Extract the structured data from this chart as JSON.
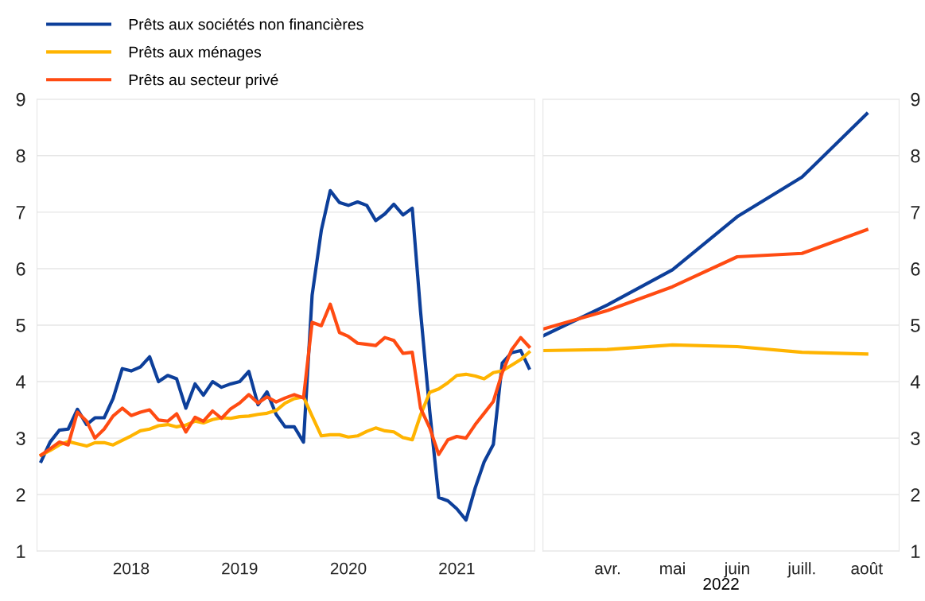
{
  "chart_data": [
    {
      "type": "line",
      "x": [
        "2017-09",
        "2017-10",
        "2017-11",
        "2017-12",
        "2018-01",
        "2018-02",
        "2018-03",
        "2018-04",
        "2018-05",
        "2018-06",
        "2018-07",
        "2018-08",
        "2018-09",
        "2018-10",
        "2018-11",
        "2018-12",
        "2019-01",
        "2019-02",
        "2019-03",
        "2019-04",
        "2019-05",
        "2019-06",
        "2019-07",
        "2019-08",
        "2019-09",
        "2019-10",
        "2019-11",
        "2019-12",
        "2020-01",
        "2020-02",
        "2020-03",
        "2020-04",
        "2020-05",
        "2020-06",
        "2020-07",
        "2020-08",
        "2020-09",
        "2020-10",
        "2020-11",
        "2020-12",
        "2021-01",
        "2021-02",
        "2021-03",
        "2021-04",
        "2021-05",
        "2021-06",
        "2021-07",
        "2021-08",
        "2021-09",
        "2021-10",
        "2021-11",
        "2021-12",
        "2022-01",
        "2022-02",
        "2022-03"
      ],
      "series": [
        {
          "name": "Prêts aux sociétés non financières",
          "color": "#0d3f9a",
          "values": [
            2.59,
            2.93,
            3.14,
            3.16,
            3.51,
            3.24,
            3.36,
            3.36,
            3.7,
            4.23,
            4.19,
            4.26,
            4.44,
            4.0,
            4.11,
            4.05,
            3.53,
            3.96,
            3.76,
            4.0,
            3.9,
            3.96,
            4.0,
            4.18,
            3.59,
            3.82,
            3.42,
            3.2,
            3.2,
            2.93,
            5.53,
            6.68,
            7.38,
            7.17,
            7.12,
            7.18,
            7.12,
            6.85,
            6.97,
            7.14,
            6.95,
            7.07,
            5.24,
            3.47,
            1.95,
            1.89,
            1.75,
            1.55,
            2.12,
            2.58,
            2.89,
            4.33,
            4.51,
            4.55,
            4.24
          ]
        },
        {
          "name": "Prêts aux ménages",
          "color": "#ffb400",
          "values": [
            2.7,
            2.78,
            2.88,
            2.94,
            2.9,
            2.86,
            2.92,
            2.92,
            2.88,
            2.96,
            3.04,
            3.13,
            3.16,
            3.22,
            3.24,
            3.2,
            3.23,
            3.3,
            3.27,
            3.33,
            3.36,
            3.35,
            3.38,
            3.39,
            3.42,
            3.44,
            3.49,
            3.62,
            3.7,
            3.73,
            3.39,
            3.04,
            3.06,
            3.06,
            3.02,
            3.04,
            3.12,
            3.18,
            3.13,
            3.11,
            3.01,
            2.97,
            3.41,
            3.81,
            3.87,
            3.98,
            4.11,
            4.13,
            4.1,
            4.05,
            4.16,
            4.19,
            4.29,
            4.39,
            4.52
          ]
        },
        {
          "name": "Prêts au secteur privé",
          "color": "#ff4b12",
          "values": [
            2.7,
            2.81,
            2.93,
            2.88,
            3.46,
            3.3,
            3.0,
            3.16,
            3.39,
            3.53,
            3.4,
            3.46,
            3.5,
            3.32,
            3.3,
            3.43,
            3.11,
            3.37,
            3.3,
            3.48,
            3.35,
            3.52,
            3.62,
            3.77,
            3.62,
            3.73,
            3.64,
            3.71,
            3.77,
            3.71,
            5.05,
            4.99,
            5.37,
            4.87,
            4.8,
            4.68,
            4.66,
            4.64,
            4.78,
            4.73,
            4.5,
            4.52,
            3.53,
            3.18,
            2.71,
            2.97,
            3.03,
            3.0,
            3.24,
            3.44,
            3.65,
            4.16,
            4.56,
            4.78,
            4.62
          ]
        }
      ],
      "xlim": [
        "2017-08-18",
        "2022-03-20"
      ],
      "xticks": [
        {
          "value": "2018-07-01",
          "label": "2018"
        },
        {
          "value": "2019-07-01",
          "label": "2019"
        },
        {
          "value": "2020-07-01",
          "label": "2020"
        },
        {
          "value": "2021-07-01",
          "label": "2021"
        }
      ],
      "ylim": [
        1,
        9
      ],
      "yticks": [
        1,
        2,
        3,
        4,
        5,
        6,
        7,
        8,
        9
      ],
      "grid": "y",
      "legend": "top left"
    },
    {
      "type": "line",
      "categories": [
        null,
        "avr.",
        "mai",
        "juin",
        "juill.",
        "août"
      ],
      "xlabel": "2022",
      "series": [
        {
          "color": "#0d3f9a",
          "values": [
            4.81,
            5.36,
            5.98,
            6.92,
            7.62,
            8.74
          ]
        },
        {
          "color": "#ffb400",
          "values": [
            4.55,
            4.57,
            4.65,
            4.62,
            4.52,
            4.49
          ]
        },
        {
          "color": "#ff4b12",
          "values": [
            4.93,
            5.26,
            5.68,
            6.21,
            6.27,
            6.69
          ]
        }
      ],
      "ylim": [
        1,
        9
      ],
      "yticks": [
        1,
        2,
        3,
        4,
        5,
        6,
        7,
        8,
        9
      ],
      "grid": "y"
    }
  ]
}
